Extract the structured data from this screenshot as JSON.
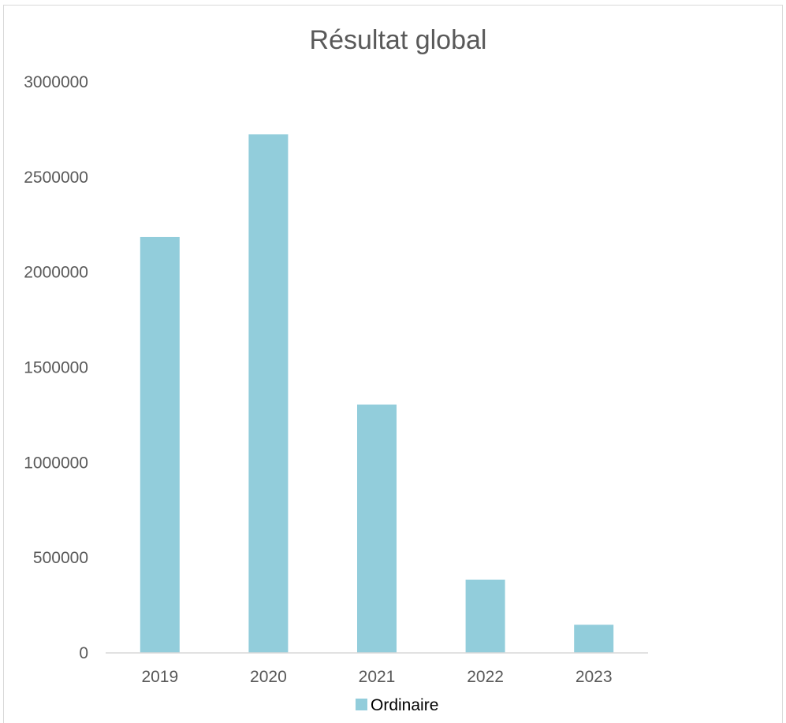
{
  "chart_data": {
    "type": "bar",
    "title": "Résultat global",
    "xlabel": "",
    "ylabel": "",
    "categories": [
      "2019",
      "2020",
      "2021",
      "2022",
      "2023"
    ],
    "series": [
      {
        "name": "Ordinaire",
        "color": "#92cddb",
        "values": [
          2185000,
          2725000,
          1305000,
          385000,
          148000
        ]
      }
    ],
    "ylim": [
      0,
      3000000
    ],
    "yticks": [
      "0",
      "500000",
      "1000000",
      "1500000",
      "2000000",
      "2500000",
      "3000000"
    ],
    "grid": false,
    "legend_position": "bottom"
  }
}
